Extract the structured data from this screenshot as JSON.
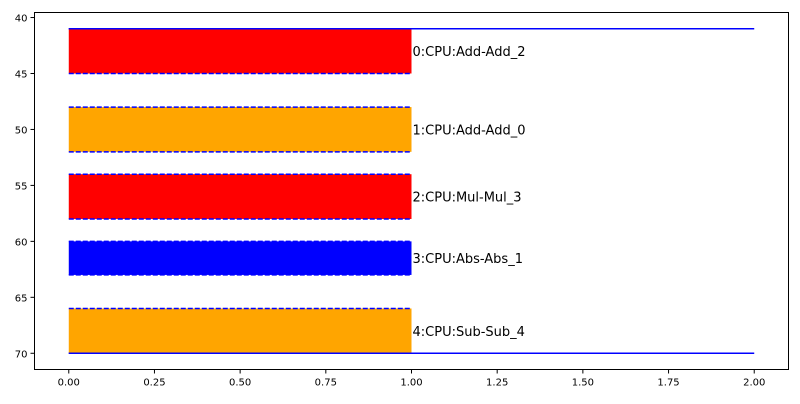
{
  "chart_data": {
    "type": "bar",
    "orientation": "horizontal-spans",
    "title": "",
    "xlabel": "",
    "ylabel": "",
    "xlim": [
      -0.1,
      2.1
    ],
    "ylim": [
      71.45,
      39.55
    ],
    "y_inverted": true,
    "grid": false,
    "x_ticks": [
      "0.00",
      "0.25",
      "0.50",
      "0.75",
      "1.00",
      "1.25",
      "1.50",
      "1.75",
      "2.00"
    ],
    "x_tick_values": [
      0,
      0.25,
      0.5,
      0.75,
      1.0,
      1.25,
      1.5,
      1.75,
      2.0
    ],
    "y_ticks": [
      "40",
      "45",
      "50",
      "55",
      "60",
      "65",
      "70"
    ],
    "y_tick_values": [
      40,
      45,
      50,
      55,
      60,
      65,
      70
    ],
    "bars": [
      {
        "label": "0:CPU:Add-Add_2",
        "x_start": 0,
        "x_end": 1.0,
        "y_start": 41,
        "y_end": 45,
        "color": "#ff0000"
      },
      {
        "label": "1:CPU:Add-Add_0",
        "x_start": 0,
        "x_end": 1.0,
        "y_start": 48,
        "y_end": 52,
        "color": "#ffa500"
      },
      {
        "label": "2:CPU:Mul-Mul_3",
        "x_start": 0,
        "x_end": 1.0,
        "y_start": 54,
        "y_end": 58,
        "color": "#ff0000"
      },
      {
        "label": "3:CPU:Abs-Abs_1",
        "x_start": 0,
        "x_end": 1.0,
        "y_start": 60,
        "y_end": 63,
        "color": "#0000ff"
      },
      {
        "label": "4:CPU:Sub-Sub_4",
        "x_start": 0,
        "x_end": 1.0,
        "y_start": 66,
        "y_end": 70,
        "color": "#ffa500"
      }
    ],
    "bar_edge_style": {
      "color": "#0000ff",
      "linestyle": "dashed"
    },
    "hlines": [
      {
        "y": 41,
        "x_start": 0,
        "x_end": 2.0,
        "color": "#0000ff"
      },
      {
        "y": 70,
        "x_start": 0,
        "x_end": 2.0,
        "color": "#0000ff"
      }
    ]
  }
}
